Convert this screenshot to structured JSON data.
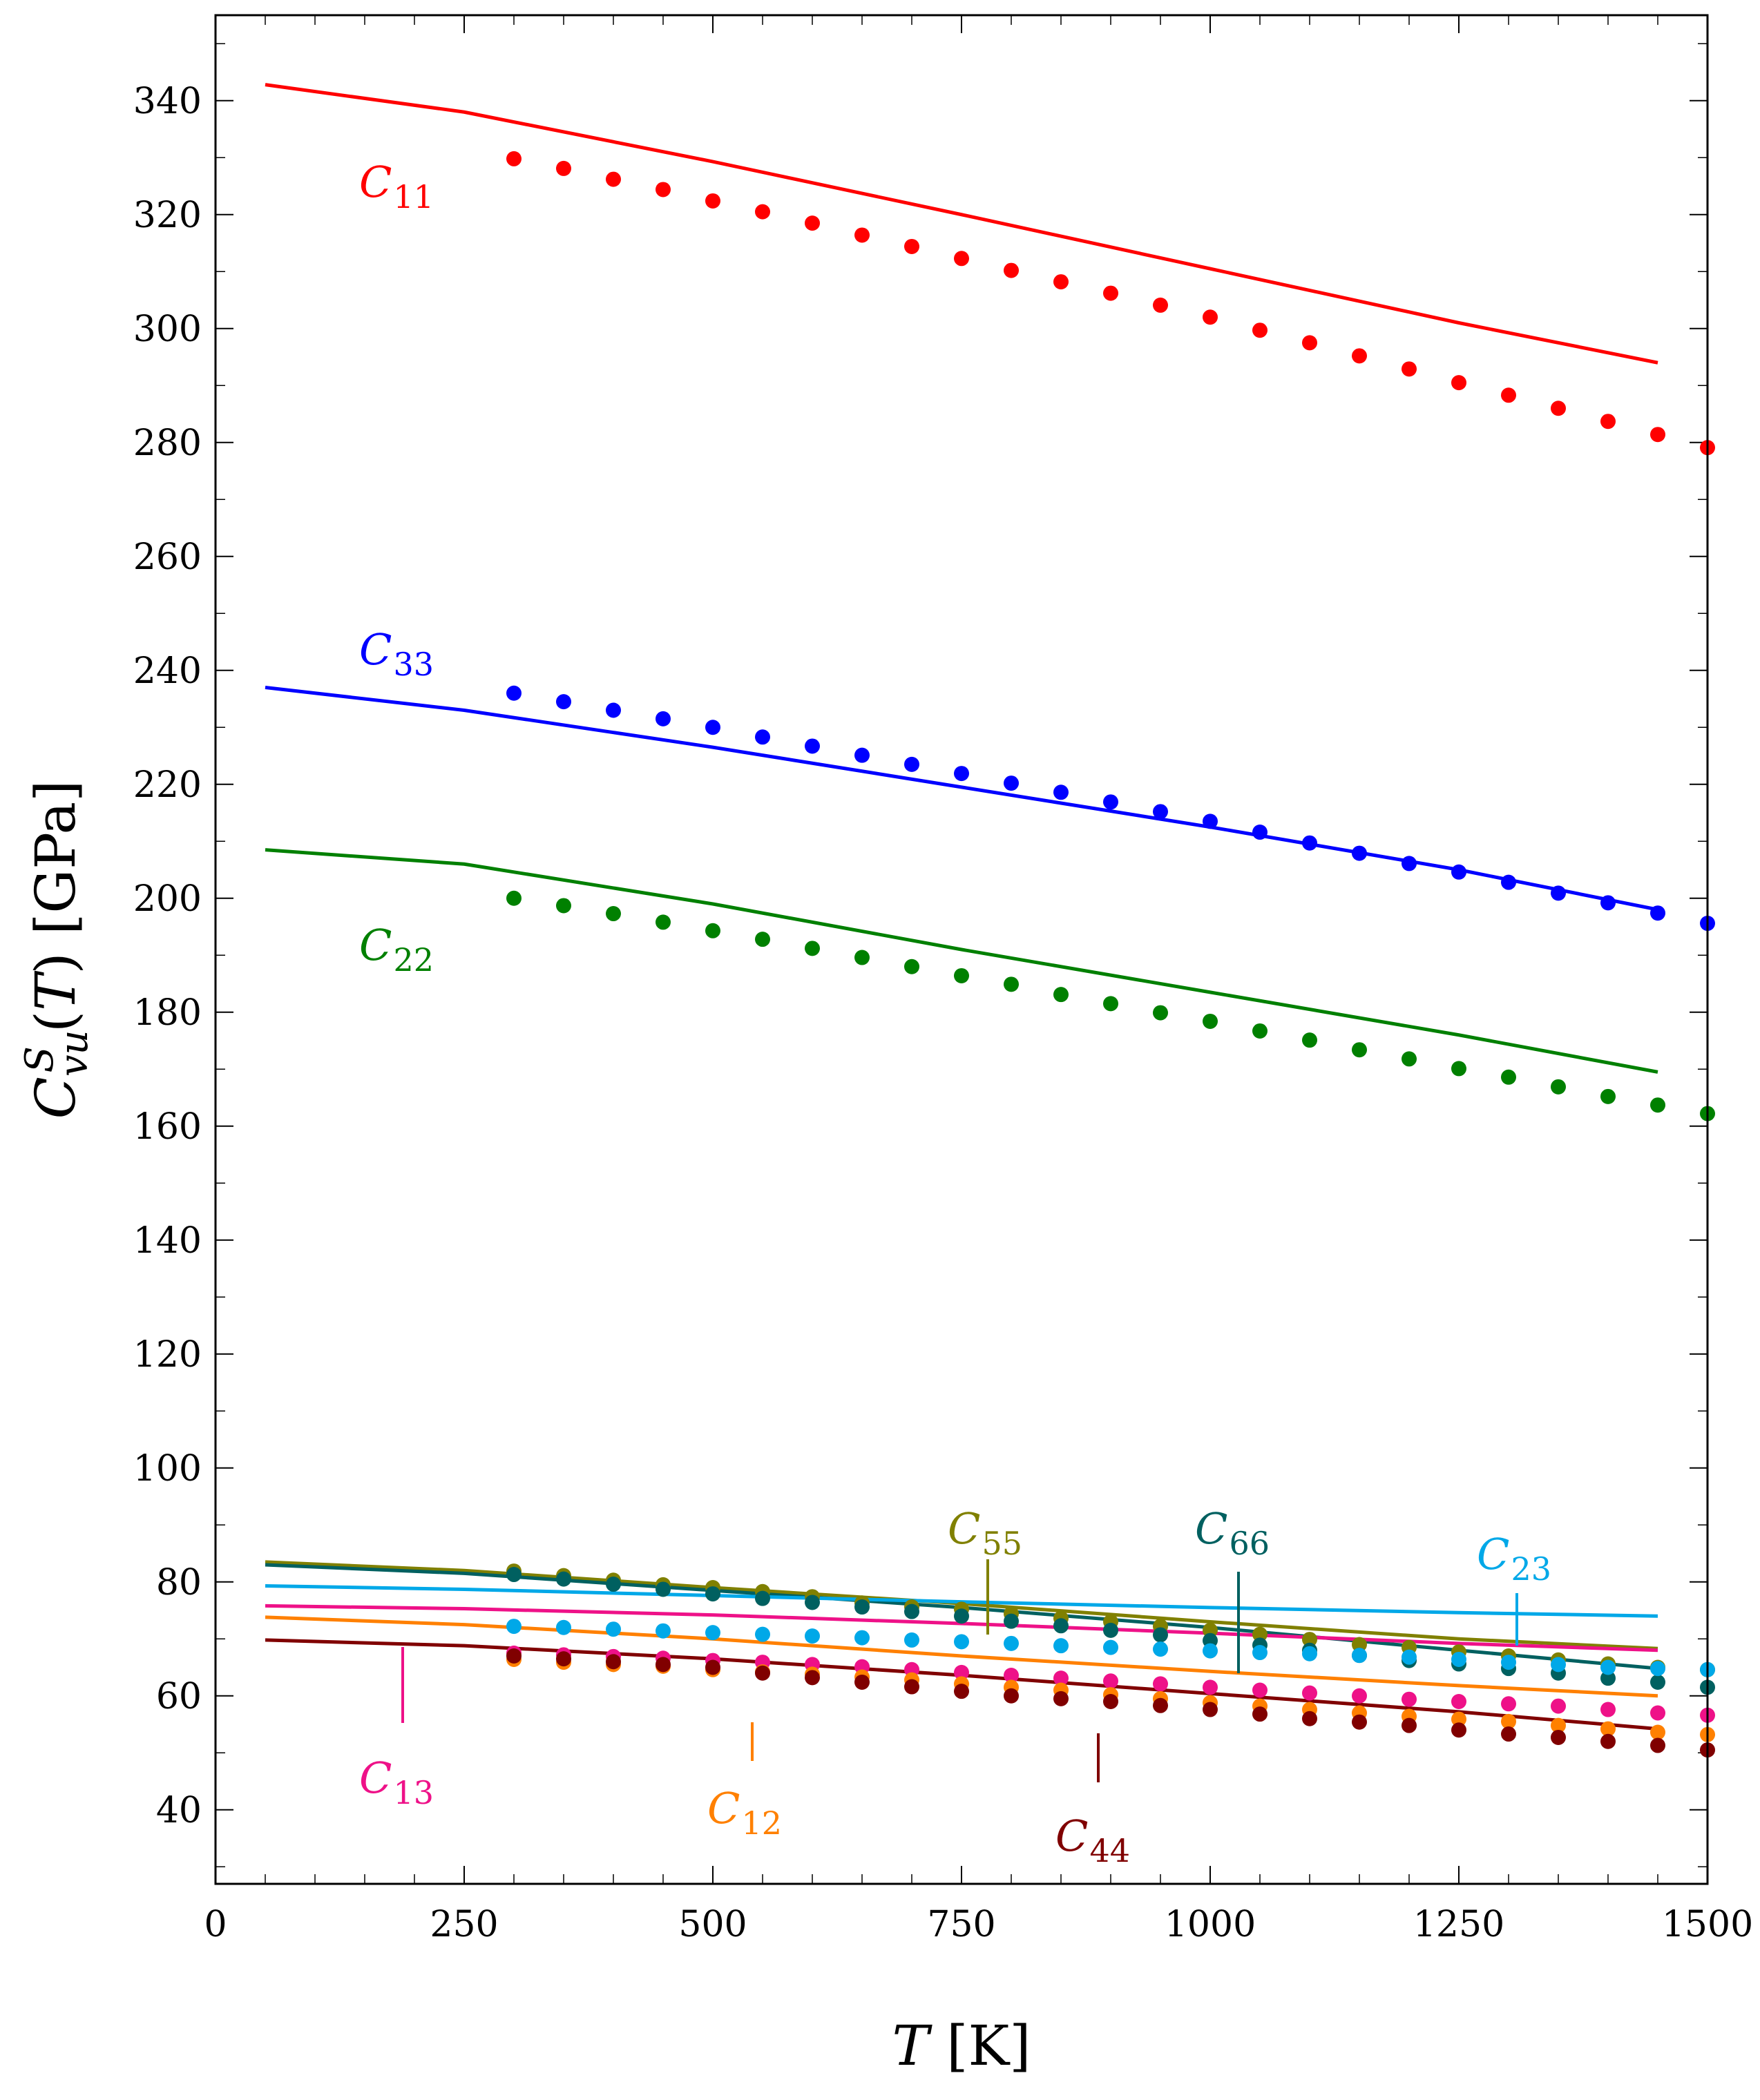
{
  "chart_data": {
    "type": "scatter",
    "title": "",
    "xlabel": "T [K]",
    "ylabel": "C_vu^S(T) [GPa]",
    "xlim": [
      0,
      1500
    ],
    "ylim": [
      27,
      355
    ],
    "xticks": [
      0,
      250,
      500,
      750,
      1000,
      1250,
      1500
    ],
    "xtick_labels": [
      "0",
      "250",
      "500",
      "750",
      "1000",
      "1250",
      "1500"
    ],
    "yticks": [
      40,
      60,
      80,
      100,
      120,
      140,
      160,
      180,
      200,
      220,
      240,
      260,
      280,
      300,
      320,
      340
    ],
    "ytick_labels": [
      "40",
      "60",
      "80",
      "100",
      "120",
      "140",
      "160",
      "180",
      "200",
      "220",
      "240",
      "260",
      "280",
      "300",
      "320",
      "340"
    ],
    "grid": false,
    "x_points": [
      300,
      350,
      400,
      450,
      500,
      550,
      600,
      650,
      700,
      750,
      800,
      850,
      900,
      950,
      1000,
      1050,
      1100,
      1150,
      1200,
      1250,
      1300,
      1350,
      1400,
      1450,
      1500
    ],
    "x_line": [
      50,
      250,
      500,
      750,
      1000,
      1250,
      1450
    ],
    "series": [
      {
        "name": "C11",
        "label_main": "C",
        "label_sub": "11",
        "color": "#ff0000",
        "line": [
          342.8,
          338,
          329.3,
          320,
          310.5,
          301,
          294
        ],
        "points": [
          329.8,
          328.1,
          326.2,
          324.4,
          322.4,
          320.5,
          318.5,
          316.4,
          314.4,
          312.3,
          310.2,
          308.2,
          306.2,
          304.1,
          302,
          299.7,
          297.5,
          295.2,
          292.9,
          290.5,
          288.3,
          286,
          283.7,
          281.4,
          279.1
        ]
      },
      {
        "name": "C33",
        "label_main": "C",
        "label_sub": "33",
        "color": "#0000ff",
        "line": [
          237,
          233,
          226.5,
          219.5,
          212.5,
          205,
          198
        ],
        "points": [
          236,
          234.5,
          233,
          231.5,
          230,
          228.3,
          226.7,
          225.1,
          223.5,
          221.9,
          220.2,
          218.6,
          216.9,
          215.2,
          213.5,
          211.6,
          209.7,
          207.9,
          206.1,
          204.6,
          202.8,
          200.9,
          199.2,
          197.4,
          195.6
        ]
      },
      {
        "name": "C22",
        "label_main": "C",
        "label_sub": "22",
        "color": "#008000",
        "line": [
          208.5,
          206,
          199,
          191,
          183.5,
          176,
          169.5
        ],
        "points": [
          200,
          198.7,
          197.3,
          195.8,
          194.3,
          192.8,
          191.2,
          189.6,
          188,
          186.4,
          184.9,
          183.1,
          181.5,
          179.9,
          178.4,
          176.7,
          175.1,
          173.4,
          171.8,
          170.1,
          168.6,
          166.9,
          165.2,
          163.7,
          162.2
        ]
      },
      {
        "name": "C55",
        "label_main": "C",
        "label_sub": "55",
        "color": "#808000",
        "line": [
          83.5,
          82,
          79,
          76.2,
          73,
          70,
          68.3
        ],
        "points": [
          81.9,
          81.1,
          80.3,
          79.5,
          79,
          78.3,
          77.4,
          76.3,
          75.6,
          75.2,
          74.4,
          73.6,
          73,
          72.2,
          71.5,
          70.8,
          69.9,
          69,
          68.5,
          67.7,
          67,
          66.3,
          65.6,
          65,
          64.6
        ]
      },
      {
        "name": "C66",
        "label_main": "C",
        "label_sub": "66",
        "color": "#006060",
        "line": [
          83,
          81.5,
          78.5,
          75.5,
          72,
          68,
          64.8
        ],
        "points": [
          81.3,
          80.5,
          79.6,
          78.7,
          77.9,
          77.1,
          76.4,
          75.6,
          74.8,
          74,
          73.1,
          72.3,
          71.5,
          70.7,
          69.7,
          68.9,
          68,
          67.1,
          66.2,
          65.6,
          64.8,
          64,
          63.1,
          62.4,
          61.5
        ]
      },
      {
        "name": "C23",
        "label_main": "C",
        "label_sub": "23",
        "color": "#00a8e8",
        "line": [
          79.3,
          78.7,
          77.6,
          76.5,
          75.5,
          74.6,
          74
        ],
        "points": [
          72.2,
          72,
          71.7,
          71.4,
          71.1,
          70.8,
          70.5,
          70.2,
          69.8,
          69.5,
          69.2,
          68.8,
          68.5,
          68.2,
          67.9,
          67.6,
          67.4,
          67.1,
          66.8,
          66.4,
          65.9,
          65.5,
          65,
          64.8,
          64.6
        ]
      },
      {
        "name": "C13",
        "label_main": "C",
        "label_sub": "13",
        "color": "#ee1188",
        "line": [
          75.8,
          75.3,
          74.2,
          72.7,
          71,
          69.2,
          68
        ],
        "points": [
          67.5,
          67.2,
          66.9,
          66.6,
          66.2,
          65.9,
          65.5,
          65.1,
          64.6,
          64.1,
          63.6,
          63.1,
          62.6,
          62.1,
          61.5,
          61,
          60.5,
          60,
          59.4,
          59,
          58.6,
          58.2,
          57.6,
          57,
          56.6
        ]
      },
      {
        "name": "C12",
        "label_main": "C",
        "label_sub": "12",
        "color": "#ff8000",
        "line": [
          73.8,
          72.5,
          70,
          67,
          64.3,
          61.8,
          60
        ],
        "points": [
          66.4,
          65.9,
          65.5,
          65.2,
          64.6,
          64.2,
          63.8,
          63.3,
          62.8,
          62.1,
          61.5,
          61,
          60.2,
          59.5,
          58.8,
          58.2,
          57.6,
          57,
          56.4,
          55.9,
          55.5,
          54.8,
          54.2,
          53.6,
          53.2
        ]
      },
      {
        "name": "C44",
        "label_main": "C",
        "label_sub": "44",
        "color": "#800000",
        "line": [
          69.8,
          68.8,
          66.5,
          63.6,
          60.4,
          57.2,
          54.2
        ],
        "points": [
          67,
          66.5,
          66,
          65.5,
          65,
          64,
          63.2,
          62.4,
          61.6,
          60.8,
          60,
          59.5,
          59,
          58.3,
          57.6,
          56.8,
          56,
          55.4,
          54.8,
          54,
          53.3,
          52.7,
          52,
          51.3,
          50.5
        ]
      }
    ],
    "labels": [
      {
        "series": "C11",
        "text": "C",
        "sub": "11"
      },
      {
        "series": "C33",
        "text": "C",
        "sub": "33"
      },
      {
        "series": "C22",
        "text": "C",
        "sub": "22"
      },
      {
        "series": "C55",
        "text": "C",
        "sub": "55"
      },
      {
        "series": "C66",
        "text": "C",
        "sub": "66"
      },
      {
        "series": "C23",
        "text": "C",
        "sub": "23"
      },
      {
        "series": "C13",
        "text": "C",
        "sub": "13"
      },
      {
        "series": "C12",
        "text": "C",
        "sub": "12"
      },
      {
        "series": "C44",
        "text": "C",
        "sub": "44"
      }
    ]
  }
}
